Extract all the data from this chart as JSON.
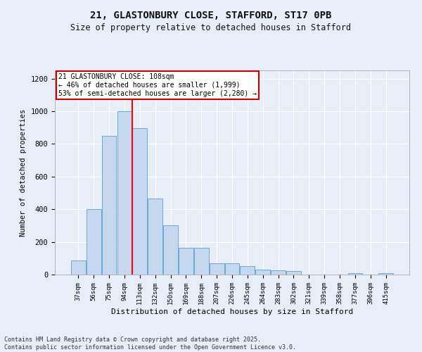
{
  "title_line1": "21, GLASTONBURY CLOSE, STAFFORD, ST17 0PB",
  "title_line2": "Size of property relative to detached houses in Stafford",
  "xlabel": "Distribution of detached houses by size in Stafford",
  "ylabel": "Number of detached properties",
  "categories": [
    "37sqm",
    "56sqm",
    "75sqm",
    "94sqm",
    "113sqm",
    "132sqm",
    "150sqm",
    "169sqm",
    "188sqm",
    "207sqm",
    "226sqm",
    "245sqm",
    "264sqm",
    "283sqm",
    "302sqm",
    "321sqm",
    "339sqm",
    "358sqm",
    "377sqm",
    "396sqm",
    "415sqm"
  ],
  "values": [
    85,
    400,
    850,
    1000,
    895,
    465,
    300,
    165,
    165,
    70,
    70,
    50,
    30,
    25,
    20,
    0,
    0,
    0,
    10,
    0,
    10
  ],
  "bar_color": "#c5d8f0",
  "bar_edgecolor": "#6aaad4",
  "redline_index": 3.5,
  "annotation_text": "21 GLASTONBURY CLOSE: 108sqm\n← 46% of detached houses are smaller (1,999)\n53% of semi-detached houses are larger (2,280) →",
  "annotation_box_color": "#ffffff",
  "annotation_box_edgecolor": "#cc0000",
  "ylim": [
    0,
    1250
  ],
  "yticks": [
    0,
    200,
    400,
    600,
    800,
    1000,
    1200
  ],
  "background_color": "#e8eef8",
  "plot_bg_color": "#e8eef8",
  "grid_color": "#ffffff",
  "footer_line1": "Contains HM Land Registry data © Crown copyright and database right 2025.",
  "footer_line2": "Contains public sector information licensed under the Open Government Licence v3.0."
}
